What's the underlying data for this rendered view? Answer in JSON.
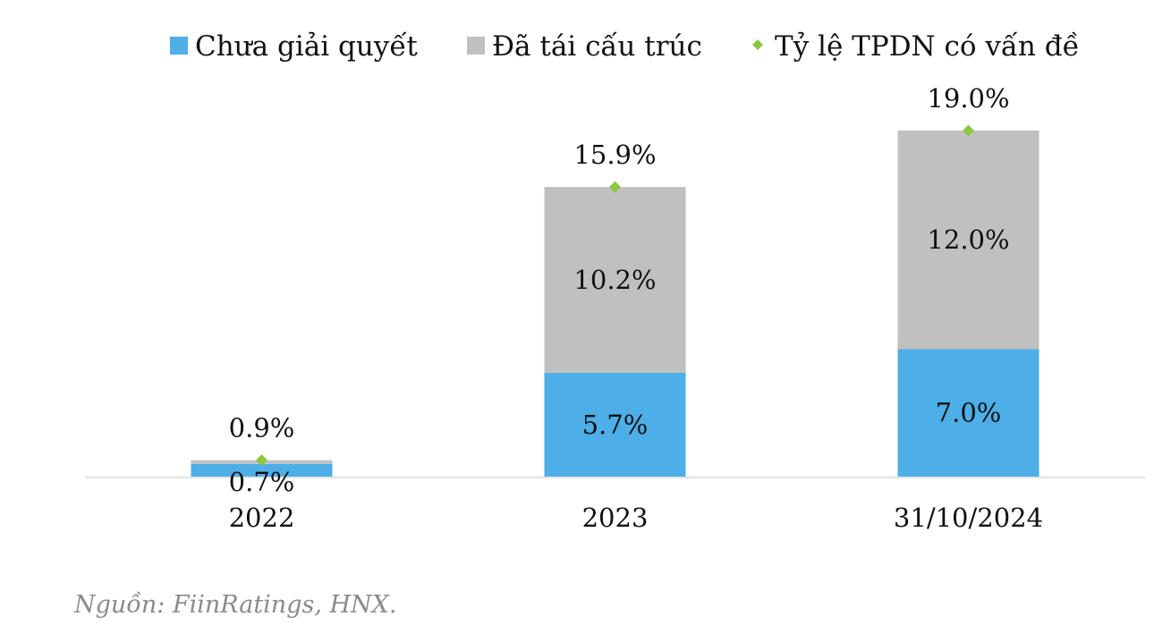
{
  "chart_data": {
    "type": "bar",
    "stacked": true,
    "categories": [
      "2022",
      "2023",
      "31/10/2024"
    ],
    "series": [
      {
        "name": "Chưa giải quyết",
        "values": [
          0.7,
          5.7,
          7.0
        ],
        "labels": [
          "0.7%",
          "5.7%",
          "7.0%"
        ],
        "color": "#4daee8",
        "kind": "bar"
      },
      {
        "name": "Đã tái cấu trúc",
        "values": [
          0.2,
          10.2,
          12.0
        ],
        "labels": [
          "",
          "10.2%",
          "12.0%"
        ],
        "color": "#c0c0c0",
        "kind": "bar"
      },
      {
        "name": "Tỷ lệ TPDN có vấn đề",
        "values": [
          0.9,
          15.9,
          19.0
        ],
        "labels": [
          "0.9%",
          "15.9%",
          "19.0%"
        ],
        "color": "#8dc63f",
        "kind": "marker"
      }
    ],
    "ylim": [
      0,
      20
    ],
    "grid": false,
    "legend_position": "top"
  },
  "source": "Nguồn: FiinRatings, HNX."
}
